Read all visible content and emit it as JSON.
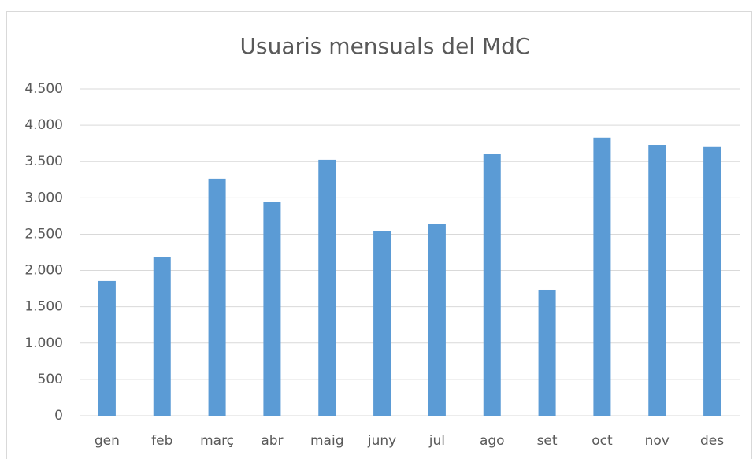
{
  "chart_data": {
    "type": "bar",
    "title": "Usuaris mensuals del MdC",
    "categories": [
      "gen",
      "feb",
      "març",
      "abr",
      "maig",
      "juny",
      "jul",
      "ago",
      "set",
      "oct",
      "nov",
      "des"
    ],
    "values": [
      1855,
      2180,
      3265,
      2940,
      3525,
      2540,
      2635,
      3610,
      1735,
      3830,
      3730,
      3700
    ],
    "color": "#5b9bd5",
    "ylim": [
      0,
      4500
    ],
    "yticks": [
      0,
      500,
      {
        "value": 1000,
        "label": "1.000"
      },
      {
        "value": 1500,
        "label": "1.500"
      },
      {
        "value": 2000,
        "label": "2.000"
      },
      {
        "value": 2500,
        "label": "2.500"
      },
      {
        "value": 3000,
        "label": "3.000"
      },
      {
        "value": 3500,
        "label": "3.500"
      },
      {
        "value": 4000,
        "label": "4.000"
      },
      {
        "value": 4500,
        "label": "4.500"
      }
    ],
    "grid": true
  }
}
